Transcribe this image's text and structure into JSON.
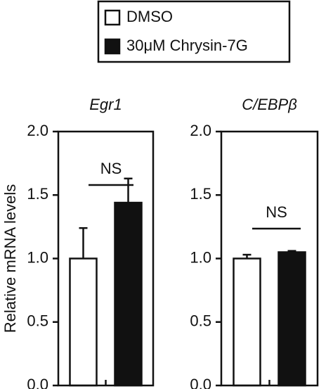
{
  "chart_data": [
    {
      "type": "bar",
      "title": "Egr1",
      "ylabel": "Relative mRNA levels",
      "categories": [
        null
      ],
      "series": [
        {
          "name": "DMSO",
          "color": "#ffffff",
          "values": [
            1.0
          ],
          "errors": [
            0.24
          ]
        },
        {
          "name": "30μM Chrysin-7G",
          "color": "#111111",
          "values": [
            1.44
          ],
          "errors": [
            0.19
          ]
        }
      ],
      "annotation": "NS",
      "ylim": [
        0,
        2
      ],
      "yticks": [
        {
          "value": 0,
          "label": "0.0"
        },
        {
          "value": 0.5,
          "label": "0.5"
        },
        {
          "value": 1,
          "label": "1.0"
        },
        {
          "value": 1.5,
          "label": "1.5"
        },
        {
          "value": 2,
          "label": "2.0"
        }
      ]
    },
    {
      "type": "bar",
      "title": "C/EBPβ",
      "categories": [
        null
      ],
      "series": [
        {
          "color": "#ffffff",
          "values": [
            1.0
          ],
          "errors": [
            0.03
          ]
        },
        {
          "color": "#111111",
          "values": [
            1.05
          ],
          "errors": [
            0.01
          ]
        }
      ],
      "annotation": "NS",
      "ylim": [
        0,
        2
      ],
      "yticks": [
        {
          "value": 0,
          "label": "0.0"
        },
        {
          "value": 0.5,
          "label": "0.5"
        },
        {
          "value": 1,
          "label": "1.0"
        },
        {
          "value": 1.5,
          "label": "1.5"
        },
        {
          "value": 2,
          "label": "2.0"
        }
      ]
    }
  ]
}
